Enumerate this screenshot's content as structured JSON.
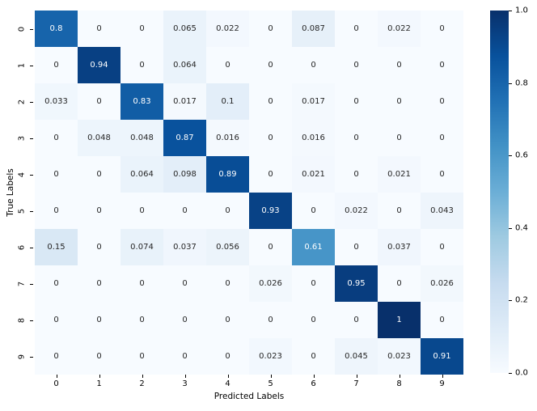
{
  "figure": {
    "background": "#ffffff"
  },
  "chart_data": {
    "type": "heatmap",
    "title": "",
    "xlabel": "Predicted Labels",
    "ylabel": "True Labels",
    "x_tick_labels": [
      "0",
      "1",
      "2",
      "3",
      "4",
      "5",
      "6",
      "7",
      "8",
      "9"
    ],
    "y_tick_labels": [
      "0",
      "1",
      "2",
      "3",
      "4",
      "5",
      "6",
      "7",
      "8",
      "9"
    ],
    "values": [
      [
        0.8,
        0,
        0,
        0.065,
        0.022,
        0,
        0.087,
        0,
        0.022,
        0
      ],
      [
        0,
        0.94,
        0,
        0.064,
        0,
        0,
        0,
        0,
        0,
        0
      ],
      [
        0.033,
        0,
        0.83,
        0.017,
        0.1,
        0,
        0.017,
        0,
        0,
        0
      ],
      [
        0,
        0.048,
        0.048,
        0.87,
        0.016,
        0,
        0.016,
        0,
        0,
        0
      ],
      [
        0,
        0,
        0.064,
        0.098,
        0.89,
        0,
        0.021,
        0,
        0.021,
        0
      ],
      [
        0,
        0,
        0,
        0,
        0,
        0.93,
        0,
        0.022,
        0,
        0.043
      ],
      [
        0.15,
        0,
        0.074,
        0.037,
        0.056,
        0,
        0.61,
        0,
        0.037,
        0
      ],
      [
        0,
        0,
        0,
        0,
        0,
        0.026,
        0,
        0.95,
        0,
        0.026
      ],
      [
        0,
        0,
        0,
        0,
        0,
        0,
        0,
        0,
        1,
        0
      ],
      [
        0,
        0,
        0,
        0,
        0,
        0.023,
        0,
        0.045,
        0.023,
        0.91
      ]
    ],
    "annotations": [
      [
        "0.8",
        "0",
        "0",
        "0.065",
        "0.022",
        "0",
        "0.087",
        "0",
        "0.022",
        "0"
      ],
      [
        "0",
        "0.94",
        "0",
        "0.064",
        "0",
        "0",
        "0",
        "0",
        "0",
        "0"
      ],
      [
        "0.033",
        "0",
        "0.83",
        "0.017",
        "0.1",
        "0",
        "0.017",
        "0",
        "0",
        "0"
      ],
      [
        "0",
        "0.048",
        "0.048",
        "0.87",
        "0.016",
        "0",
        "0.016",
        "0",
        "0",
        "0"
      ],
      [
        "0",
        "0",
        "0.064",
        "0.098",
        "0.89",
        "0",
        "0.021",
        "0",
        "0.021",
        "0"
      ],
      [
        "0",
        "0",
        "0",
        "0",
        "0",
        "0.93",
        "0",
        "0.022",
        "0",
        "0.043"
      ],
      [
        "0.15",
        "0",
        "0.074",
        "0.037",
        "0.056",
        "0",
        "0.61",
        "0",
        "0.037",
        "0"
      ],
      [
        "0",
        "0",
        "0",
        "0",
        "0",
        "0.026",
        "0",
        "0.95",
        "0",
        "0.026"
      ],
      [
        "0",
        "0",
        "0",
        "0",
        "0",
        "0",
        "0",
        "0",
        "1",
        "0"
      ],
      [
        "0",
        "0",
        "0",
        "0",
        "0",
        "0.023",
        "0",
        "0.045",
        "0.023",
        "0.91"
      ]
    ],
    "vmin": 0.0,
    "vmax": 1.0,
    "grid": false,
    "colormap": "Blues",
    "legend_position": "colorbar-right",
    "colorbar_tick_labels": [
      "1.0",
      "0.8",
      "0.6",
      "0.4",
      "0.2",
      "0.0"
    ],
    "colorbar_tick_values": [
      1.0,
      0.8,
      0.6,
      0.4,
      0.2,
      0.0
    ],
    "colors": {
      "annot_light": "#ffffff",
      "annot_dark": "#262626",
      "tick_color": "#000000",
      "cmap_anchors": [
        [
          0.0,
          "#f7fbff"
        ],
        [
          0.125,
          "#deebf7"
        ],
        [
          0.25,
          "#c6dbef"
        ],
        [
          0.375,
          "#9ecae1"
        ],
        [
          0.5,
          "#6baed6"
        ],
        [
          0.625,
          "#4292c6"
        ],
        [
          0.75,
          "#2171b5"
        ],
        [
          0.875,
          "#08519c"
        ],
        [
          1.0,
          "#08306b"
        ]
      ]
    }
  }
}
